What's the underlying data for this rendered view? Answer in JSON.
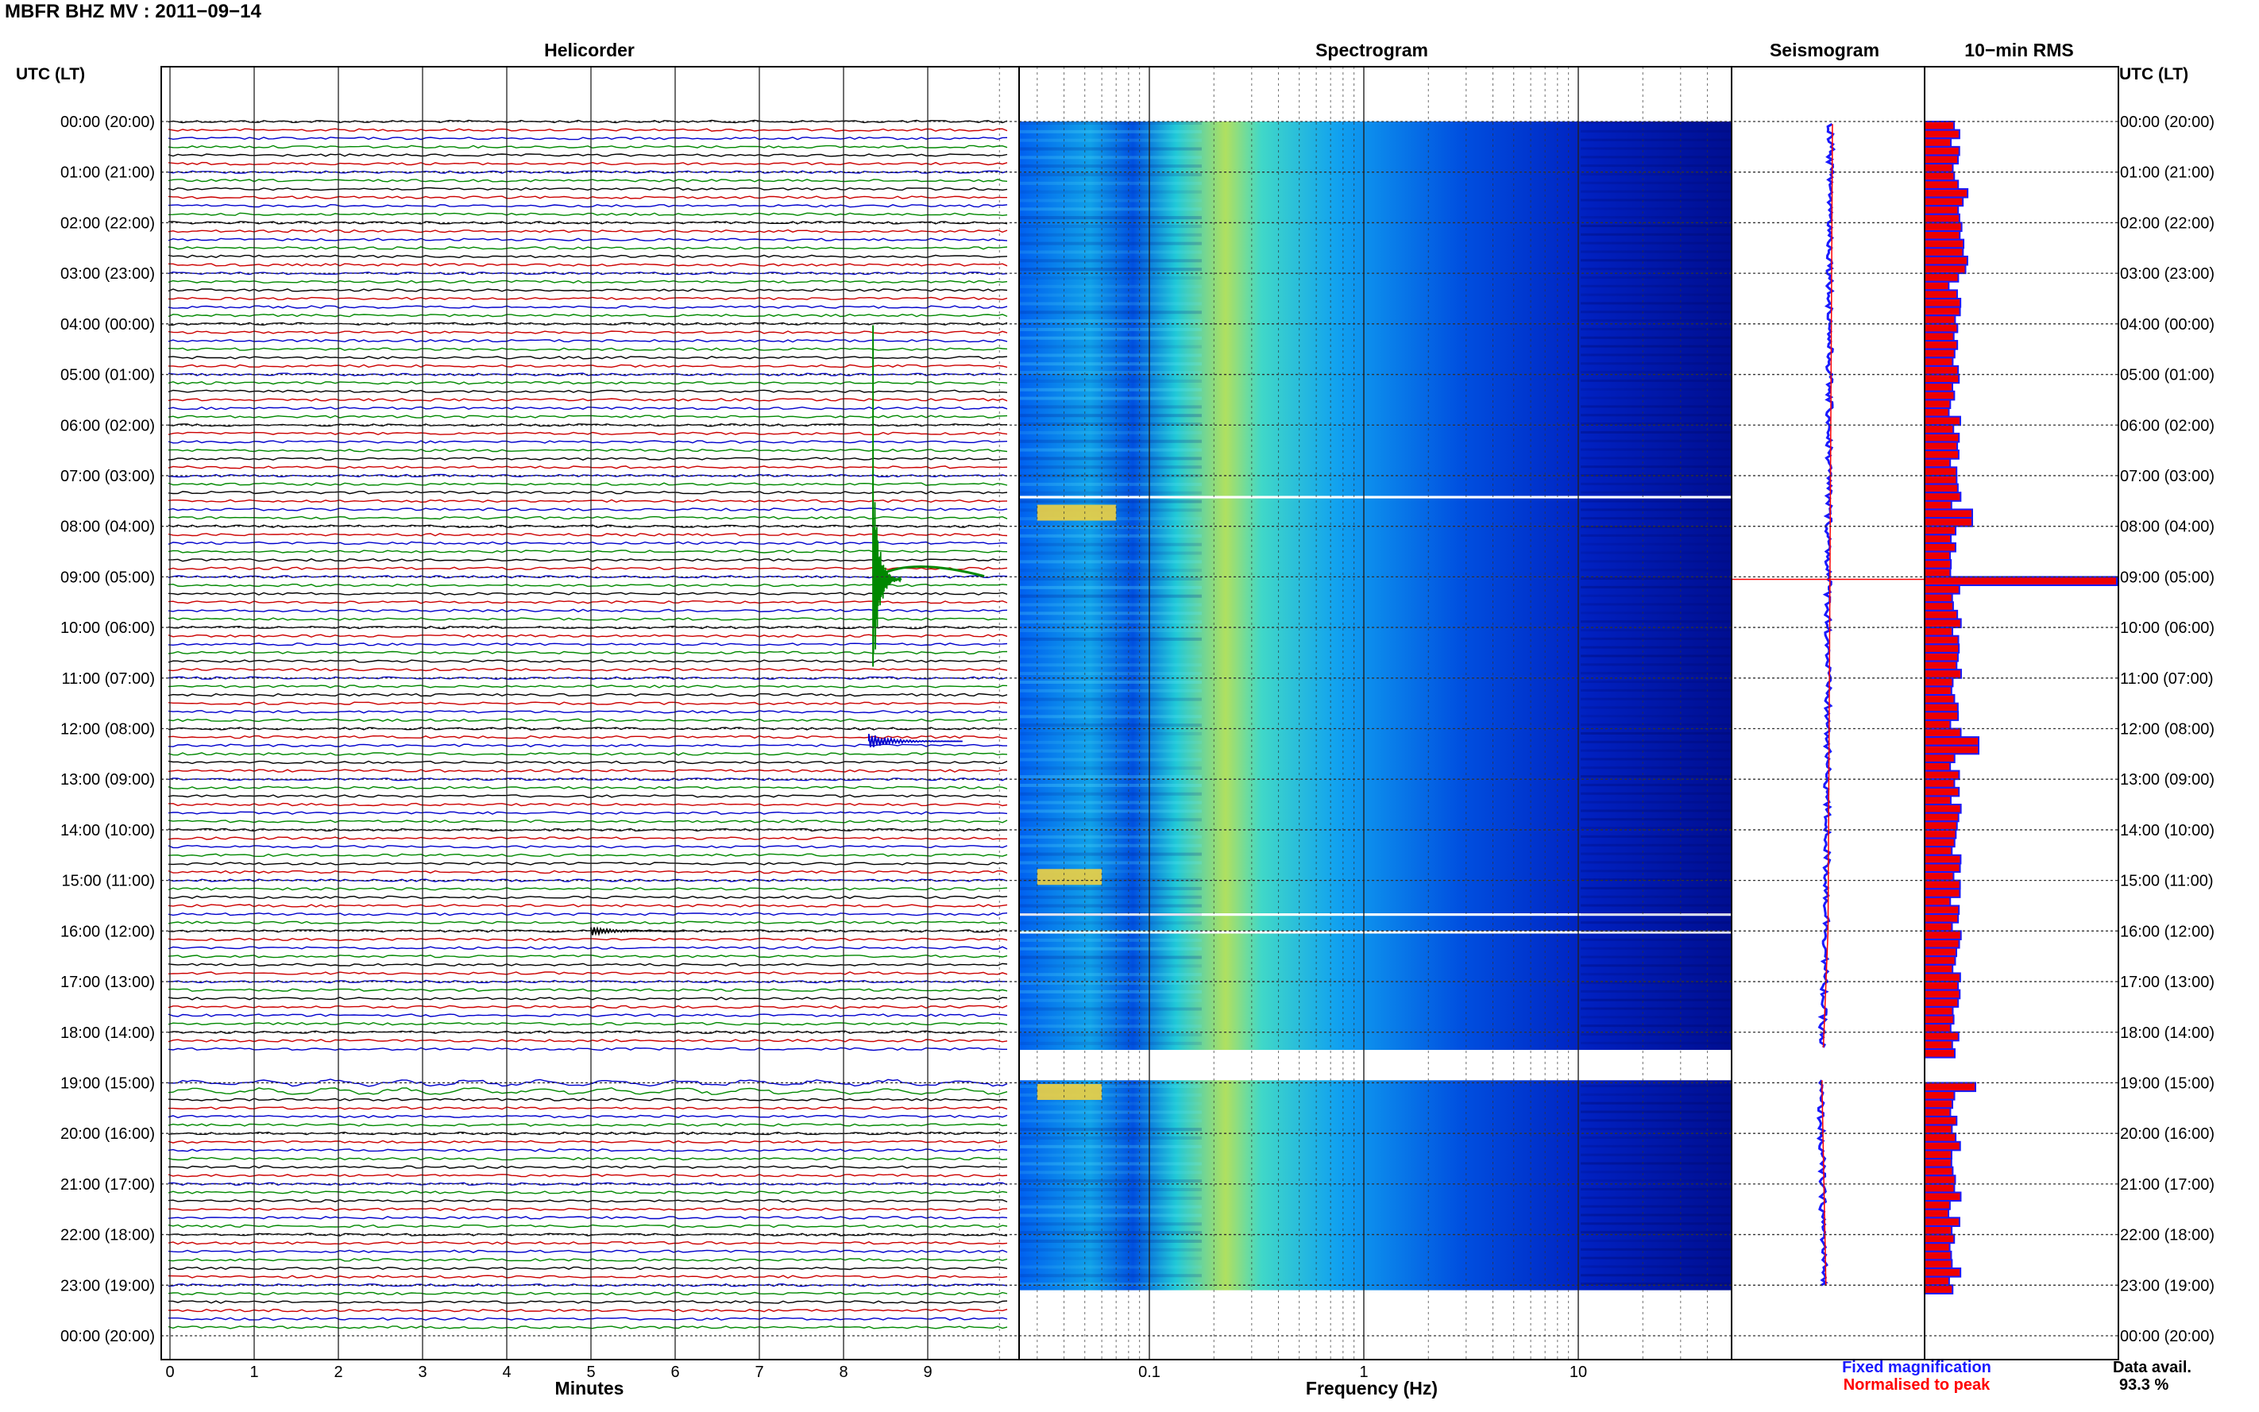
{
  "header": {
    "title": "MBFR BHZ MV : 2011−09−14",
    "left_axis_label": "UTC (LT)",
    "right_axis_label": "UTC (LT)"
  },
  "panels": {
    "helicorder": "Helicorder",
    "spectrogram": "Spectrogram",
    "seismogram": "Seismogram",
    "rms": "10−min RMS"
  },
  "colors": {
    "trace_cycle": [
      "#000000",
      "#cc0000",
      "#0000cc",
      "#008800"
    ],
    "fixed": "#1a1aff",
    "normalised": "#ff0000",
    "rms_fill": "#ee0000",
    "rms_edge": "#1a1aff"
  },
  "chart_data": [
    {
      "type": "line",
      "panel": "helicorder",
      "title": "Helicorder",
      "xlabel": "Minutes",
      "xlim": [
        0,
        10
      ],
      "x_ticks": [
        0,
        1,
        2,
        3,
        4,
        5,
        6,
        7,
        8,
        9
      ],
      "y_tick_labels": [
        "00:00 (20:00)",
        "01:00 (21:00)",
        "02:00 (22:00)",
        "03:00 (23:00)",
        "04:00 (00:00)",
        "05:00 (01:00)",
        "06:00 (02:00)",
        "07:00 (03:00)",
        "08:00 (04:00)",
        "09:00 (05:00)",
        "10:00 (06:00)",
        "11:00 (07:00)",
        "12:00 (08:00)",
        "13:00 (09:00)",
        "14:00 (10:00)",
        "15:00 (11:00)",
        "16:00 (12:00)",
        "17:00 (13:00)",
        "18:00 (14:00)",
        "19:00 (15:00)",
        "20:00 (16:00)",
        "21:00 (17:00)",
        "22:00 (18:00)",
        "23:00 (19:00)",
        "00:00 (20:00)"
      ],
      "traces_per_hour": 6,
      "gaps_hours": [
        [
          18.35,
          18.95
        ]
      ],
      "events": [
        {
          "hour": 9.05,
          "minute": 8.35,
          "amplitude": "large"
        },
        {
          "hour": 12.25,
          "minute": 8.3,
          "amplitude": "medium"
        },
        {
          "hour": 16.0,
          "minute": 5.0,
          "amplitude": "small"
        }
      ]
    },
    {
      "type": "heatmap",
      "panel": "spectrogram",
      "title": "Spectrogram",
      "xlabel": "Frequency (Hz)",
      "x_scale": "log",
      "xlim": [
        0.02,
        50
      ],
      "x_tick_labels": [
        "0.1",
        "1",
        "10"
      ],
      "y_tick_labels": [
        "00:00",
        "01:00",
        "02:00",
        "03:00",
        "04:00",
        "05:00",
        "06:00",
        "07:00",
        "08:00",
        "09:00",
        "10:00",
        "11:00",
        "12:00",
        "13:00",
        "14:00",
        "15:00",
        "16:00",
        "17:00",
        "18:00",
        "19:00",
        "20:00",
        "21:00",
        "22:00",
        "23:00",
        "00:00"
      ],
      "colormap": "jet",
      "gaps_hours": [
        [
          7.4,
          7.45
        ],
        [
          15.65,
          15.7
        ],
        [
          16.0,
          16.05
        ],
        [
          18.35,
          18.95
        ]
      ],
      "hot_spots": [
        {
          "hour": 7.7,
          "f_low": 0.03,
          "f_high": 0.07
        },
        {
          "hour": 14.9,
          "f_low": 0.03,
          "f_high": 0.06
        },
        {
          "hour": 19.15,
          "f_low": 0.03,
          "f_high": 0.06
        }
      ]
    },
    {
      "type": "line",
      "panel": "seismogram",
      "title": "Seismogram",
      "legend": [
        "Fixed magnification",
        "Normalised to peak"
      ],
      "legend_placement": "bottom"
    },
    {
      "type": "bar",
      "panel": "rms",
      "title": "10−min RMS",
      "interval_minutes": 10,
      "gap_hours": [
        [
          18.35,
          18.95
        ]
      ],
      "peak_hour": 9.05,
      "data_availability_label": "Data avail.",
      "data_availability": "93.3 %"
    }
  ]
}
